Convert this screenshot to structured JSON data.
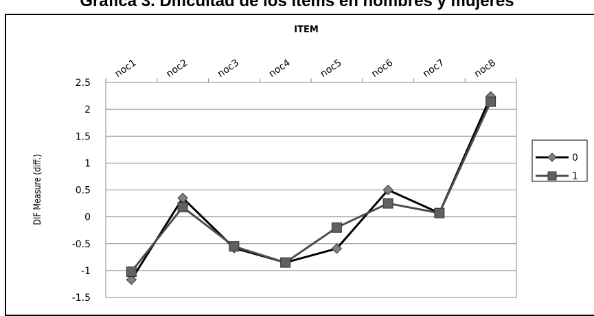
{
  "page_title": "Gráfica 3. Dificultad de los ítems en hombres y mujeres",
  "chart_data": {
    "type": "line",
    "title": "",
    "xlabel": "ITEM",
    "ylabel": "DIF Measure (diff.)",
    "categories": [
      "noc1",
      "noc2",
      "noc3",
      "noc4",
      "noc5",
      "noc6",
      "noc7",
      "noc8"
    ],
    "series": [
      {
        "name": "0",
        "marker": "diamond",
        "color": "#000000",
        "marker_color": "#7f7f7f",
        "values": [
          -1.17,
          0.35,
          -0.58,
          -0.85,
          -0.59,
          0.5,
          0.07,
          2.24
        ]
      },
      {
        "name": "1",
        "marker": "square",
        "color": "#4d4d4d",
        "marker_color": "#606060",
        "values": [
          -1.02,
          0.18,
          -0.55,
          -0.85,
          -0.2,
          0.25,
          0.07,
          2.14
        ]
      }
    ],
    "ylim": [
      -1.5,
      2.5
    ],
    "yticks": [
      "2.5",
      "2",
      "1.5",
      "1",
      "0.5",
      "0",
      "-0.5",
      "-1",
      "-1.5"
    ],
    "x_axis_position": "top",
    "grid": true,
    "legend_position": "right"
  }
}
